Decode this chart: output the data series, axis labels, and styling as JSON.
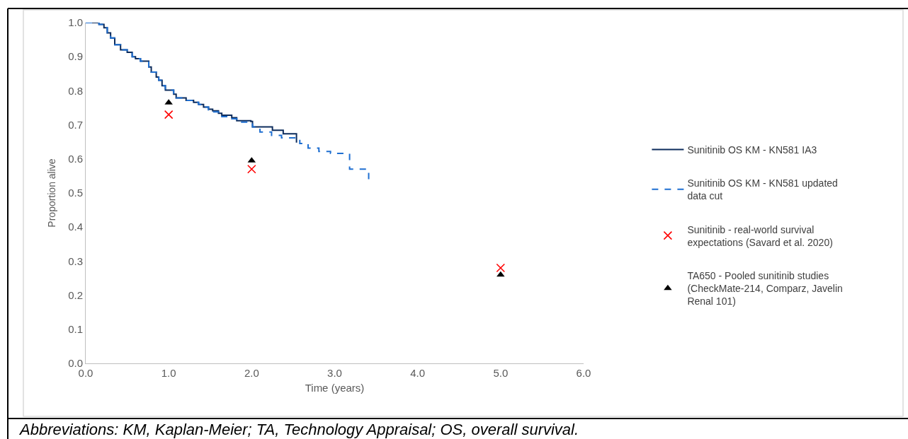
{
  "chart_data": {
    "type": "step",
    "xlabel": "Time (years)",
    "ylabel": "Proportion alive",
    "annotations": [
      "Abbreviations: KM, Kaplan-Meier; TA, Technology Appraisal; OS, overall survival."
    ],
    "xlim": [
      0,
      6
    ],
    "ylim": [
      0,
      1
    ],
    "xticks": [
      {
        "value": 0,
        "label": "0.0"
      },
      {
        "value": 1,
        "label": "1.0"
      },
      {
        "value": 2,
        "label": "2.0"
      },
      {
        "value": 3,
        "label": "3.0"
      },
      {
        "value": 4,
        "label": "4.0"
      },
      {
        "value": 5,
        "label": "5.0"
      },
      {
        "value": 6,
        "label": "6.0"
      }
    ],
    "yticks": [
      {
        "value": 0,
        "label": "0.0"
      },
      {
        "value": 0.1,
        "label": "0.1"
      },
      {
        "value": 0.2,
        "label": "0.2"
      },
      {
        "value": 0.3,
        "label": "0.3"
      },
      {
        "value": 0.4,
        "label": "0.4"
      },
      {
        "value": 0.5,
        "label": "0.5"
      },
      {
        "value": 0.6,
        "label": "0.6"
      },
      {
        "value": 0.7,
        "label": "0.7"
      },
      {
        "value": 0.8,
        "label": "0.8"
      },
      {
        "value": 0.9,
        "label": "0.9"
      },
      {
        "value": 1,
        "label": "1.0"
      }
    ],
    "grid": false,
    "legend": "right",
    "series": [
      {
        "name": "Sunitinib OS KM - KN581 IA3",
        "color": "#0d2c5c",
        "line_style": "solid",
        "marker": "none",
        "x": [
          0,
          0.16,
          0.22,
          0.26,
          0.3,
          0.35,
          0.42,
          0.5,
          0.56,
          0.6,
          0.66,
          0.76,
          0.79,
          0.85,
          0.88,
          0.92,
          0.96,
          1.06,
          1.09,
          1.21,
          1.3,
          1.36,
          1.42,
          1.48,
          1.53,
          1.6,
          1.64,
          1.76,
          1.82,
          1.99,
          2.01,
          2.25,
          2.38,
          2.54
        ],
        "values": [
          1.0,
          0.995,
          0.985,
          0.97,
          0.955,
          0.935,
          0.92,
          0.913,
          0.9,
          0.894,
          0.887,
          0.87,
          0.855,
          0.84,
          0.831,
          0.815,
          0.802,
          0.79,
          0.779,
          0.772,
          0.766,
          0.76,
          0.752,
          0.746,
          0.741,
          0.734,
          0.728,
          0.721,
          0.712,
          0.71,
          0.694,
          0.684,
          0.674,
          0.648
        ]
      },
      {
        "name": "Sunitinib OS KM - KN581 updated data cut",
        "color": "#1f6fd1",
        "line_style": "dashed",
        "marker": "none",
        "x": [
          0,
          0.16,
          0.22,
          0.26,
          0.3,
          0.35,
          0.42,
          0.5,
          0.56,
          0.6,
          0.66,
          0.76,
          0.79,
          0.85,
          0.88,
          0.92,
          0.96,
          1.06,
          1.09,
          1.21,
          1.3,
          1.36,
          1.42,
          1.48,
          1.53,
          1.6,
          1.64,
          1.76,
          1.82,
          1.99,
          2.01,
          2.1,
          2.24,
          2.36,
          2.58,
          2.68,
          2.81,
          2.95,
          3.18,
          3.41
        ],
        "values": [
          1.0,
          0.995,
          0.985,
          0.97,
          0.955,
          0.935,
          0.92,
          0.913,
          0.9,
          0.894,
          0.887,
          0.87,
          0.855,
          0.84,
          0.831,
          0.815,
          0.802,
          0.79,
          0.779,
          0.772,
          0.766,
          0.76,
          0.752,
          0.744,
          0.738,
          0.73,
          0.724,
          0.718,
          0.708,
          0.705,
          0.694,
          0.679,
          0.669,
          0.662,
          0.645,
          0.632,
          0.622,
          0.616,
          0.57,
          0.534
        ]
      },
      {
        "name": "Sunitinib - real-world survival expectations (Savard et al. 2020)",
        "type": "scatter",
        "marker": "cross",
        "color": "#ff0000",
        "x": [
          1,
          2,
          5
        ],
        "values": [
          0.73,
          0.57,
          0.28
        ]
      },
      {
        "name": "TA650 - Pooled sunitinib studies (CheckMate-214, Comparz, Javelin Renal 101)",
        "type": "scatter",
        "marker": "triangle",
        "color": "#000000",
        "x": [
          1,
          2,
          5
        ],
        "values": [
          0.765,
          0.595,
          0.26
        ]
      }
    ]
  }
}
